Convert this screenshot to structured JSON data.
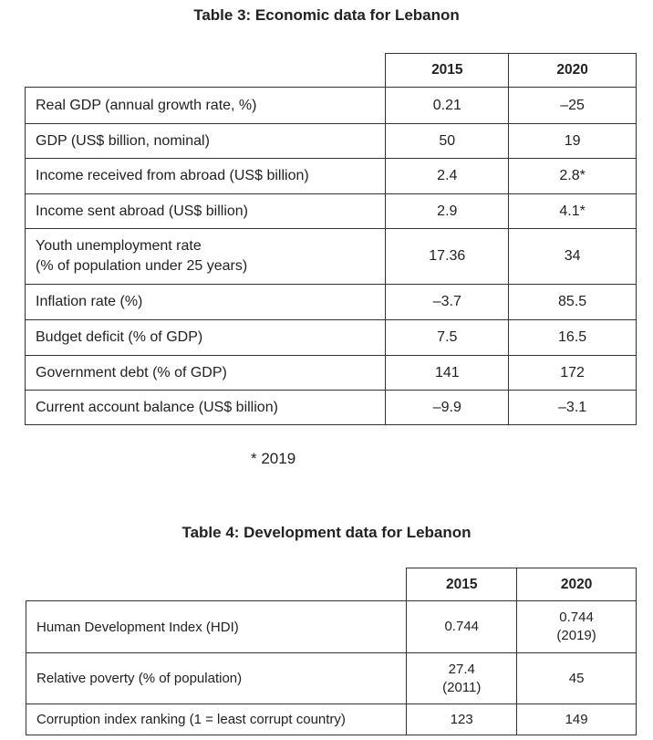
{
  "table3": {
    "title": "Table 3: Economic data for Lebanon",
    "columns": [
      "2015",
      "2020"
    ],
    "rows": [
      {
        "label": "Real GDP (annual growth rate, %)",
        "v2015": "0.21",
        "v2020": "–25"
      },
      {
        "label": "GDP (US$ billion, nominal)",
        "v2015": "50",
        "v2020": "19"
      },
      {
        "label": "Income received from abroad (US$ billion)",
        "v2015": "2.4",
        "v2020": "2.8*"
      },
      {
        "label": "Income sent abroad (US$ billion)",
        "v2015": "2.9",
        "v2020": "4.1*"
      },
      {
        "label": "Youth unemployment rate",
        "label2": "(% of population under 25 years)",
        "v2015": "17.36",
        "v2020": "34"
      },
      {
        "label": "Inflation rate (%)",
        "v2015": "–3.7",
        "v2020": "85.5"
      },
      {
        "label": "Budget deficit (% of GDP)",
        "v2015": "7.5",
        "v2020": "16.5"
      },
      {
        "label": "Government debt (% of GDP)",
        "v2015": "141",
        "v2020": "172"
      },
      {
        "label": "Current account balance (US$ billion)",
        "v2015": "–9.9",
        "v2020": "–3.1"
      }
    ],
    "footnote": "* 2019"
  },
  "table4": {
    "title": "Table 4: Development data for Lebanon",
    "columns": [
      "2015",
      "2020"
    ],
    "rows": [
      {
        "label": "Human Development Index (HDI)",
        "v2015": "0.744",
        "v2020": "0.744",
        "v2020_note": "(2019)"
      },
      {
        "label": "Relative poverty (% of population)",
        "v2015": "27.4",
        "v2015_note": "(2011)",
        "v2020": "45"
      },
      {
        "label": "Corruption index ranking (1 = least corrupt country)",
        "v2015": "123",
        "v2020": "149"
      }
    ]
  }
}
